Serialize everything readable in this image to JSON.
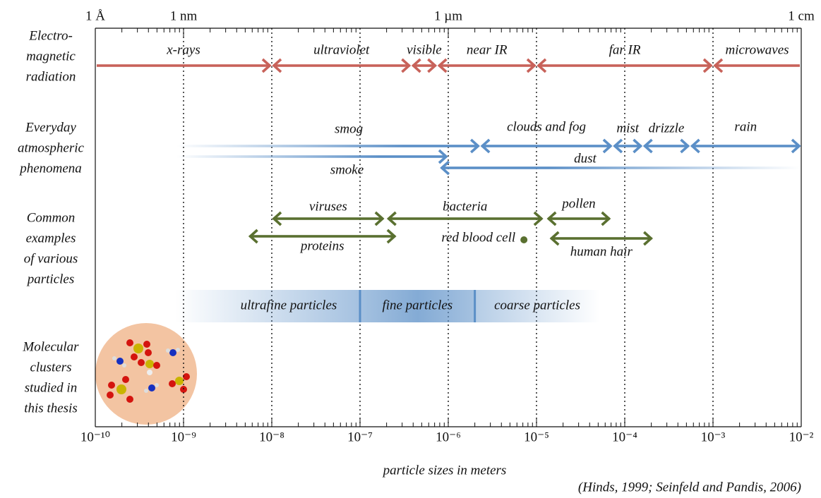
{
  "chart_data": {
    "type": "range",
    "xlim": [
      1e-10,
      0.01
    ],
    "xscale": "log",
    "grid": true,
    "xticks": [
      {
        "value": 1e-10,
        "label": "10⁻¹⁰"
      },
      {
        "value": 1e-09,
        "label": "10⁻⁹"
      },
      {
        "value": 1e-08,
        "label": "10⁻⁸"
      },
      {
        "value": 1e-07,
        "label": "10⁻⁷"
      },
      {
        "value": 1e-06,
        "label": "10⁻⁶"
      },
      {
        "value": 1e-05,
        "label": "10⁻⁵"
      },
      {
        "value": 0.0001,
        "label": "10⁻⁴"
      },
      {
        "value": 0.001,
        "label": "10⁻³"
      },
      {
        "value": 0.01,
        "label": "10⁻²"
      }
    ],
    "x2ticks": [
      {
        "value": 1e-10,
        "label": "1 Å"
      },
      {
        "value": 1e-09,
        "label": "1 nm"
      },
      {
        "value": 1e-06,
        "label": "1 µm"
      },
      {
        "value": 0.01,
        "label": "1 cm"
      }
    ],
    "xlabel": "particle sizes in meters",
    "source": "(Hinds, 1999; Seinfeld and Pandis, 2006)",
    "groups": [
      {
        "label": [
          "Electro-",
          "magnetic",
          "radiation"
        ],
        "color": "#c8625a",
        "items": [
          {
            "name": "x-rays",
            "range": [
              1e-10,
              1e-08
            ]
          },
          {
            "name": "ultraviolet",
            "range": [
              1e-08,
              3.8e-07
            ]
          },
          {
            "name": "visible",
            "range": [
              3.8e-07,
              7.5e-07
            ]
          },
          {
            "name": "near IR",
            "range": [
              7.5e-07,
              1e-05
            ]
          },
          {
            "name": "far IR",
            "range": [
              1e-05,
              0.001
            ]
          },
          {
            "name": "microwaves",
            "range": [
              0.001,
              0.01
            ]
          }
        ]
      },
      {
        "label": [
          "Everyday",
          "atmospheric",
          "phenomena"
        ],
        "color": "#5b8fc7",
        "items": [
          {
            "name": "smog",
            "range": [
              8e-10,
              2.3e-06
            ]
          },
          {
            "name": "clouds and fog",
            "range": [
              2.3e-06,
              7.3e-05
            ]
          },
          {
            "name": "mist",
            "range": [
              7.3e-05,
              0.00016
            ]
          },
          {
            "name": "drizzle",
            "range": [
              0.00016,
              0.00055
            ]
          },
          {
            "name": "rain",
            "range": [
              0.00055,
              0.01
            ]
          },
          {
            "name": "smoke",
            "range": [
              8e-10,
              1e-06
            ]
          },
          {
            "name": "dust",
            "range": [
              8e-07,
              0.01
            ]
          }
        ]
      },
      {
        "label": [
          "Common",
          "examples",
          "of various",
          "particles"
        ],
        "color": "#5a7030",
        "items": [
          {
            "name": "viruses",
            "range": [
              1e-08,
              1.9e-07
            ]
          },
          {
            "name": "bacteria",
            "range": [
              2e-07,
              1.2e-05
            ]
          },
          {
            "name": "pollen",
            "range": [
              1.3e-05,
              7e-05
            ]
          },
          {
            "name": "proteins",
            "range": [
              5.4e-09,
              2.6e-07
            ]
          },
          {
            "name": "human hair",
            "range": [
              1.4e-05,
              0.00021
            ]
          },
          {
            "name": "red blood cell",
            "value": 7.2e-06
          }
        ]
      }
    ],
    "size_classes": {
      "color": "#5b8fc7",
      "items": [
        {
          "name": "ultrafine particles",
          "range": [
            8e-10,
            1e-07
          ]
        },
        {
          "name": "fine particles",
          "range": [
            1e-07,
            2e-06
          ]
        },
        {
          "name": "coarse particles",
          "range": [
            2e-06,
            5.2e-05
          ]
        }
      ]
    },
    "molecular_clusters": {
      "label": [
        "Molecular",
        "clusters",
        "studied in",
        "this thesis"
      ]
    }
  }
}
